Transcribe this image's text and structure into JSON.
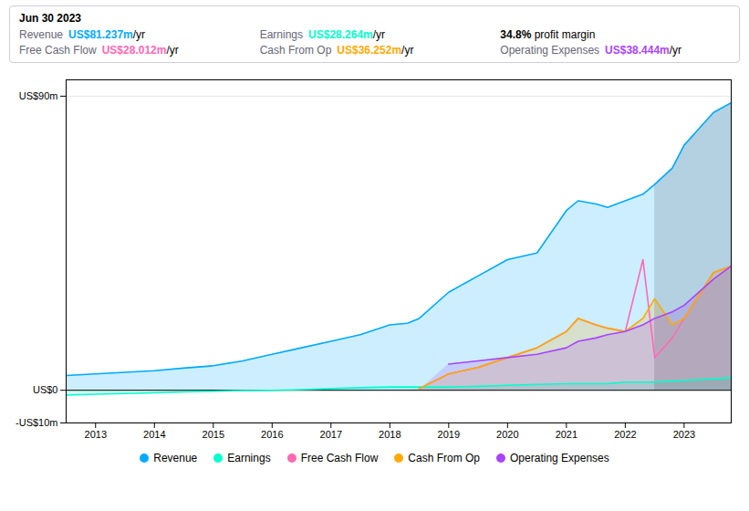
{
  "chart_data": {
    "type": "area",
    "x": [
      2012.5,
      2013.0,
      2013.5,
      2014.0,
      2014.5,
      2015.0,
      2015.5,
      2016.0,
      2016.5,
      2017.0,
      2017.5,
      2018.0,
      2018.3,
      2018.5,
      2019.0,
      2019.5,
      2020.0,
      2020.5,
      2021.0,
      2021.2,
      2021.5,
      2021.7,
      2022.0,
      2022.3,
      2022.5,
      2022.8,
      2023.0,
      2023.5,
      2023.8
    ],
    "series": [
      {
        "name": "Revenue",
        "color": "#00aaff",
        "values": [
          4.5,
          5.0,
          5.5,
          6.0,
          6.8,
          7.5,
          9.0,
          11.0,
          13.0,
          15.0,
          17.0,
          20.0,
          20.5,
          22.0,
          30.0,
          35.0,
          40.0,
          42.0,
          55.0,
          58.0,
          57.0,
          56.0,
          58.0,
          60.0,
          63.0,
          68.0,
          75.0,
          85.0,
          88.0
        ]
      },
      {
        "name": "Earnings",
        "color": "#00ffcc",
        "values": [
          -1.5,
          -1.2,
          -1.0,
          -0.8,
          -0.5,
          -0.3,
          -0.1,
          0.0,
          0.2,
          0.5,
          0.8,
          1.0,
          1.0,
          1.0,
          1.0,
          1.2,
          1.5,
          1.8,
          2.0,
          2.0,
          2.0,
          2.0,
          2.5,
          2.5,
          2.5,
          2.8,
          3.0,
          3.5,
          3.8
        ]
      },
      {
        "name": "Free Cash Flow",
        "color": "#ff69b4",
        "type": "line",
        "values": [
          null,
          null,
          null,
          null,
          null,
          null,
          null,
          null,
          null,
          null,
          null,
          null,
          null,
          0.5,
          5.0,
          7.0,
          10.0,
          13.0,
          18.0,
          22.0,
          20.0,
          19.0,
          18.0,
          40.0,
          10.0,
          16.0,
          22.0,
          36.0,
          38.0
        ]
      },
      {
        "name": "Cash From Op",
        "color": "#ffaa00",
        "values": [
          null,
          null,
          null,
          null,
          null,
          null,
          null,
          null,
          null,
          null,
          null,
          null,
          null,
          0.5,
          5.0,
          7.0,
          10.0,
          13.0,
          18.0,
          22.0,
          20.0,
          19.0,
          18.0,
          22.0,
          28.0,
          20.0,
          22.0,
          36.0,
          38.0
        ]
      },
      {
        "name": "Operating Expenses",
        "color": "#aa44ff",
        "values": [
          null,
          null,
          null,
          null,
          null,
          null,
          null,
          null,
          null,
          null,
          null,
          null,
          null,
          null,
          8.0,
          9.0,
          10.0,
          11.0,
          13.0,
          15.0,
          16.0,
          17.0,
          18.0,
          20.0,
          22.0,
          24.0,
          26.0,
          34.0,
          38.0
        ]
      }
    ],
    "xlim": [
      2012.5,
      2023.8
    ],
    "xticks": [
      2013,
      2014,
      2015,
      2016,
      2017,
      2018,
      2019,
      2020,
      2021,
      2022,
      2023
    ],
    "ylim": [
      -10,
      95
    ],
    "yticks": [
      {
        "value": -10,
        "label": "-US$10m"
      },
      {
        "value": 0,
        "label": "US$0"
      },
      {
        "value": 90,
        "label": "US$90m"
      }
    ],
    "grid": true,
    "legend": "bottom",
    "shaded_from": 2022.5,
    "annotation": {
      "title": "Jun 30 2023",
      "rows": [
        {
          "label": "Revenue",
          "value": "US$81.237m",
          "unit": "/yr"
        },
        {
          "label": "Earnings",
          "value": "US$28.264m",
          "unit": "/yr"
        },
        {
          "value": "34.8%",
          "unit": " profit margin"
        },
        {
          "label": "Free Cash Flow",
          "value": "US$28.012m",
          "unit": "/yr"
        },
        {
          "label": "Cash From Op",
          "value": "US$36.252m",
          "unit": "/yr"
        },
        {
          "label": "Operating Expenses",
          "value": "US$38.444m",
          "unit": "/yr"
        }
      ]
    }
  }
}
